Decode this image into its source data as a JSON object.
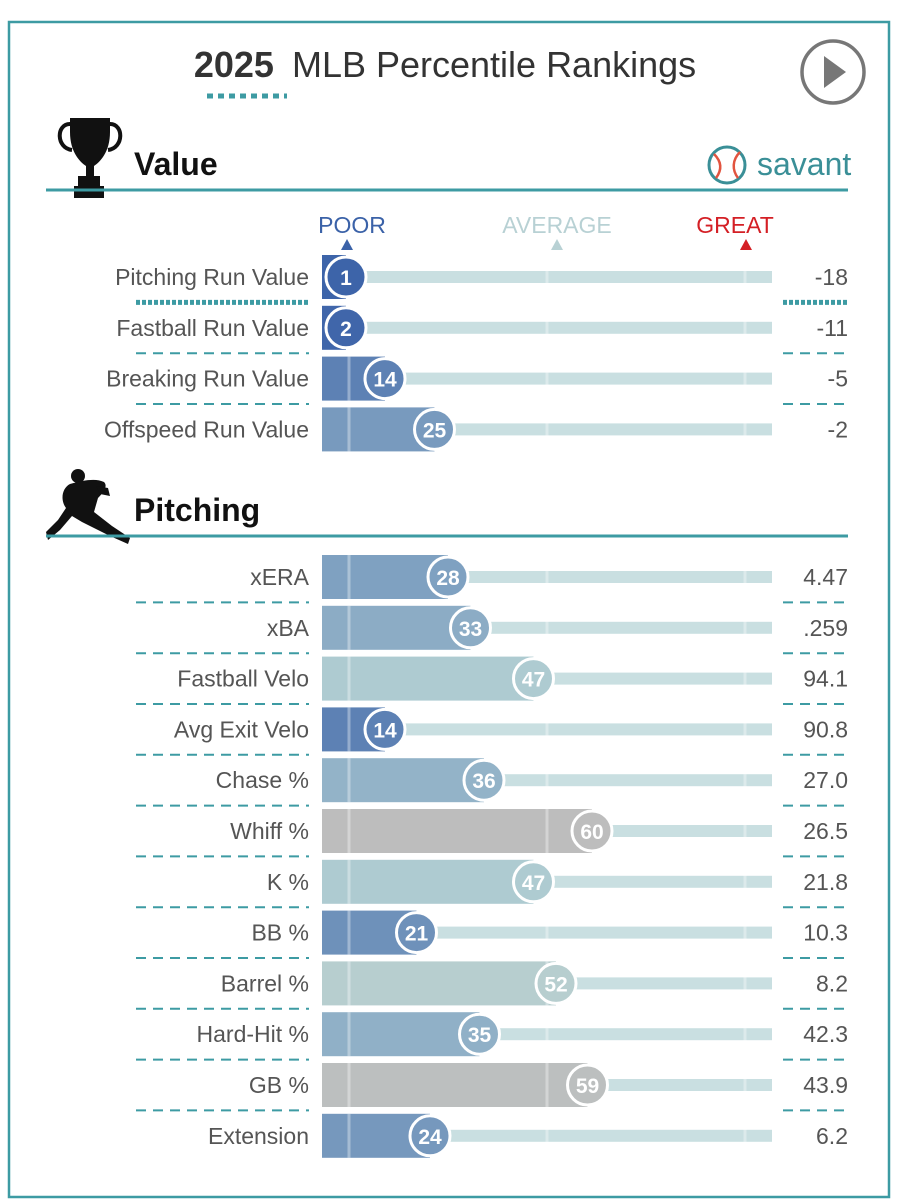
{
  "header": {
    "year": "2025",
    "title_rest": "MLB Percentile Rankings",
    "play_icon": "play-icon"
  },
  "brand": {
    "text": "savant",
    "icon": "baseball-icon",
    "color": "#3a8f97"
  },
  "scale": {
    "poor": "POOR",
    "average": "AVERAGE",
    "great": "GREAT"
  },
  "colors": {
    "frame": "#3d9ba3",
    "poor": "#3b62a8",
    "average_text": "#b8d1d4",
    "great": "#d41f25",
    "track": "#c9dfe1",
    "divider": "#3d9ba3",
    "label": "#555555"
  },
  "chart_data": [
    {
      "type": "bar",
      "section": "Value",
      "icon": "trophy-icon",
      "xlim": [
        0,
        100
      ],
      "rows": [
        {
          "label": "Pitching Run Value",
          "percentile": 1,
          "value": "-18"
        },
        {
          "label": "Fastball Run Value",
          "percentile": 2,
          "value": "-11"
        },
        {
          "label": "Breaking Run Value",
          "percentile": 14,
          "value": "-5"
        },
        {
          "label": "Offspeed Run Value",
          "percentile": 25,
          "value": "-2"
        }
      ]
    },
    {
      "type": "bar",
      "section": "Pitching",
      "icon": "pitcher-icon",
      "xlim": [
        0,
        100
      ],
      "rows": [
        {
          "label": "xERA",
          "percentile": 28,
          "value": "4.47"
        },
        {
          "label": "xBA",
          "percentile": 33,
          "value": ".259"
        },
        {
          "label": "Fastball Velo",
          "percentile": 47,
          "value": "94.1"
        },
        {
          "label": "Avg Exit Velo",
          "percentile": 14,
          "value": "90.8"
        },
        {
          "label": "Chase %",
          "percentile": 36,
          "value": "27.0"
        },
        {
          "label": "Whiff %",
          "percentile": 60,
          "value": "26.5"
        },
        {
          "label": "K %",
          "percentile": 47,
          "value": "21.8"
        },
        {
          "label": "BB %",
          "percentile": 21,
          "value": "10.3"
        },
        {
          "label": "Barrel %",
          "percentile": 52,
          "value": "8.2"
        },
        {
          "label": "Hard-Hit %",
          "percentile": 35,
          "value": "42.3"
        },
        {
          "label": "GB %",
          "percentile": 59,
          "value": "43.9"
        },
        {
          "label": "Extension",
          "percentile": 24,
          "value": "6.2"
        }
      ]
    }
  ]
}
